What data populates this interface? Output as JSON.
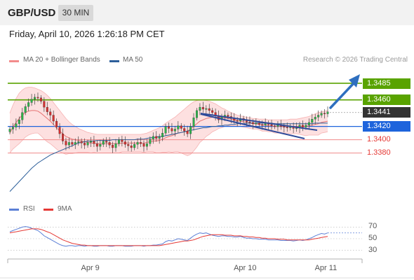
{
  "header": {
    "symbol": "GBP/USD",
    "timeframe": "30 MIN"
  },
  "datetime": "Friday, April 10, 2026 1:26:18 PM CET",
  "legend": {
    "ma20_bb": "MA 20 + Bollinger Bands",
    "ma50": "MA 50",
    "credit": "Research © 2026 Trading Central"
  },
  "rsi_legend": {
    "rsi": "RSI",
    "ma9": "9MA"
  },
  "colors": {
    "resistance": "#59a300",
    "current": "#333333",
    "pivot": "#1e64dc",
    "support": "#e53935",
    "bollinger": "#fcd5d5",
    "ma20": "#e57373",
    "ma50": "#2d5f9a",
    "channel": "#2d4a9a",
    "arrow": "#2e6fbf",
    "bull": "#2db34a",
    "bear": "#d32f2f",
    "rsi": "#5b7fd6",
    "rsi_ma": "#e53935"
  },
  "chart_data": [
    {
      "type": "candlestick",
      "title": "GBP/USD",
      "ylim": [
        1.331,
        1.3505
      ],
      "levels": [
        {
          "label": "1.3485",
          "value": 1.3485,
          "kind": "resistance"
        },
        {
          "label": "1.3460",
          "value": 1.346,
          "kind": "resistance"
        },
        {
          "label": "1.3441",
          "value": 1.3441,
          "kind": "current"
        },
        {
          "label": "1.3420",
          "value": 1.342,
          "kind": "pivot"
        },
        {
          "label": "1.3400",
          "value": 1.34,
          "kind": "support"
        },
        {
          "label": "1.3380",
          "value": 1.338,
          "kind": "support"
        }
      ],
      "x_ticks": [
        "Apr 9",
        "Apr 10",
        "Apr 11"
      ],
      "close": [
        1.3416,
        1.3419,
        1.3424,
        1.343,
        1.3441,
        1.345,
        1.3456,
        1.3461,
        1.3464,
        1.3463,
        1.3458,
        1.3449,
        1.3442,
        1.3437,
        1.3428,
        1.3419,
        1.3409,
        1.3398,
        1.3392,
        1.3396,
        1.3393,
        1.3396,
        1.3397,
        1.3395,
        1.3392,
        1.3396,
        1.3398,
        1.3394,
        1.339,
        1.3393,
        1.3398,
        1.3396,
        1.3392,
        1.3388,
        1.3394,
        1.34,
        1.3397,
        1.3393,
        1.3391,
        1.3388,
        1.3393,
        1.3396,
        1.3394,
        1.339,
        1.3394,
        1.3401,
        1.3405,
        1.3402,
        1.3404,
        1.341,
        1.342,
        1.3417,
        1.3413,
        1.3416,
        1.3421,
        1.3417,
        1.3413,
        1.3409,
        1.342,
        1.3433,
        1.3444,
        1.3449,
        1.3446,
        1.3447,
        1.3444,
        1.3441,
        1.3436,
        1.343,
        1.3434,
        1.3437,
        1.3435,
        1.3432,
        1.3429,
        1.3428,
        1.3432,
        1.3429,
        1.3427,
        1.3426,
        1.3424,
        1.3425,
        1.3423,
        1.3422,
        1.3424,
        1.3423,
        1.3421,
        1.342,
        1.3422,
        1.342,
        1.3419,
        1.3418,
        1.342,
        1.3417,
        1.3418,
        1.3422,
        1.3419,
        1.3422,
        1.3426,
        1.3431,
        1.3434,
        1.3437,
        1.344,
        1.3439,
        1.3442
      ],
      "ma20": [
        1.341,
        1.3419,
        1.3426,
        1.3432,
        1.3437,
        1.3441,
        1.3443,
        1.3444,
        1.3444,
        1.3443,
        1.344,
        1.3436,
        1.3432,
        1.3428,
        1.3423,
        1.3418,
        1.3413,
        1.3409,
        1.3405,
        1.3403,
        1.3401,
        1.34,
        1.3399,
        1.3398,
        1.3397,
        1.3396,
        1.3395,
        1.3395,
        1.3394,
        1.3394,
        1.3394,
        1.3394,
        1.3394,
        1.3394,
        1.3394,
        1.3394,
        1.3395,
        1.3395,
        1.3395,
        1.3395,
        1.3395,
        1.3395,
        1.3395,
        1.3395,
        1.3396,
        1.3397,
        1.3398,
        1.3398,
        1.3399,
        1.3401,
        1.3403,
        1.3405,
        1.3406,
        1.3408,
        1.341,
        1.3411,
        1.3412,
        1.3413,
        1.3416,
        1.342,
        1.3424,
        1.3428,
        1.343,
        1.3432,
        1.3433,
        1.3434,
        1.3434,
        1.3434,
        1.3433,
        1.3433,
        1.3432,
        1.3431,
        1.343,
        1.3429,
        1.3428,
        1.3427,
        1.3426,
        1.3425,
        1.3424,
        1.3424,
        1.3423,
        1.3422,
        1.3422,
        1.3421,
        1.3421,
        1.342,
        1.342,
        1.342,
        1.342,
        1.342,
        1.342,
        1.342,
        1.342,
        1.342,
        1.342,
        1.342,
        1.3421,
        1.3422,
        1.3423,
        1.3424,
        1.3426,
        1.3427,
        1.3428
      ],
      "bb_upper": [
        1.344,
        1.3452,
        1.3462,
        1.347,
        1.3475,
        1.3478,
        1.3479,
        1.3479,
        1.3478,
        1.3476,
        1.3474,
        1.3471,
        1.3467,
        1.3462,
        1.3456,
        1.345,
        1.3444,
        1.3438,
        1.3432,
        1.3427,
        1.3423,
        1.342,
        1.3417,
        1.3415,
        1.3413,
        1.3411,
        1.341,
        1.3409,
        1.3408,
        1.3408,
        1.3408,
        1.3408,
        1.3408,
        1.3408,
        1.3408,
        1.3408,
        1.3408,
        1.3408,
        1.3408,
        1.3408,
        1.3408,
        1.3408,
        1.3408,
        1.3409,
        1.341,
        1.3412,
        1.3414,
        1.3416,
        1.3418,
        1.3421,
        1.3425,
        1.3428,
        1.3431,
        1.3434,
        1.3438,
        1.3442,
        1.3446,
        1.345,
        1.3454,
        1.3457,
        1.3459,
        1.346,
        1.346,
        1.3459,
        1.3458,
        1.3456,
        1.3454,
        1.3451,
        1.3448,
        1.3446,
        1.3443,
        1.3441,
        1.3439,
        1.3437,
        1.3436,
        1.3435,
        1.3434,
        1.3433,
        1.3432,
        1.3432,
        1.3431,
        1.3431,
        1.3431,
        1.343,
        1.343,
        1.343,
        1.343,
        1.343,
        1.343,
        1.343,
        1.3431,
        1.3431,
        1.3431,
        1.3432,
        1.3433,
        1.3434,
        1.3435,
        1.3437,
        1.3439,
        1.3441,
        1.3442,
        1.3443,
        1.3444
      ],
      "bb_lower": [
        1.338,
        1.3386,
        1.339,
        1.3394,
        1.3399,
        1.3404,
        1.3407,
        1.3409,
        1.341,
        1.341,
        1.3406,
        1.3401,
        1.3397,
        1.3394,
        1.339,
        1.3386,
        1.3382,
        1.338,
        1.3378,
        1.3379,
        1.3379,
        1.338,
        1.3381,
        1.3381,
        1.3381,
        1.3381,
        1.338,
        1.3381,
        1.338,
        1.338,
        1.338,
        1.338,
        1.338,
        1.338,
        1.338,
        1.338,
        1.3382,
        1.3382,
        1.3382,
        1.3382,
        1.3382,
        1.3382,
        1.3382,
        1.3381,
        1.3382,
        1.3382,
        1.3382,
        1.338,
        1.338,
        1.3381,
        1.3381,
        1.3382,
        1.3381,
        1.3382,
        1.3382,
        1.338,
        1.3378,
        1.3376,
        1.3378,
        1.3383,
        1.3389,
        1.3396,
        1.34,
        1.3405,
        1.3408,
        1.3412,
        1.3414,
        1.3417,
        1.3418,
        1.342,
        1.3421,
        1.3421,
        1.3421,
        1.3421,
        1.342,
        1.3419,
        1.3418,
        1.3417,
        1.3416,
        1.3416,
        1.3415,
        1.3413,
        1.3413,
        1.3412,
        1.3412,
        1.341,
        1.341,
        1.341,
        1.341,
        1.341,
        1.3409,
        1.3409,
        1.3409,
        1.3408,
        1.3407,
        1.3406,
        1.3407,
        1.3407,
        1.3407,
        1.3407,
        1.341,
        1.3411,
        1.3412
      ],
      "ma50": [
        1.3322,
        1.3327,
        1.3332,
        1.3337,
        1.3342,
        1.3347,
        1.3352,
        1.3357,
        1.3361,
        1.3365,
        1.3368,
        1.3371,
        1.3374,
        1.3377,
        1.3379,
        1.3381,
        1.3383,
        1.3385,
        1.3387,
        1.3389,
        1.3391,
        1.3393,
        1.3395,
        1.3396,
        1.3397,
        1.3398,
        1.3398,
        1.3398,
        1.3399,
        1.3399,
        1.3399,
        1.3399,
        1.3399,
        1.34,
        1.34,
        1.34,
        1.34,
        1.34,
        1.34,
        1.34,
        1.34,
        1.3401,
        1.3401,
        1.3401,
        1.3402,
        1.3403,
        1.3403,
        1.3404,
        1.3405,
        1.3405,
        1.3406,
        1.3407,
        1.3408,
        1.3409,
        1.341,
        1.3411,
        1.3412,
        1.3413,
        1.3414,
        1.3415,
        1.3416,
        1.3417,
        1.3418,
        1.3418,
        1.3419,
        1.342,
        1.342,
        1.3421,
        1.3421,
        1.3422,
        1.3422,
        1.3423,
        1.3423,
        1.3424,
        1.3424,
        1.3424,
        1.3425,
        1.3425,
        1.3425,
        1.3425,
        1.3425,
        1.3425,
        1.3425,
        1.3425,
        1.3425,
        1.3424,
        1.3424,
        1.3424,
        1.3424,
        1.3424,
        1.3424,
        1.3424,
        1.3424,
        1.3424,
        1.3424,
        1.3424,
        1.3424,
        1.3424,
        1.3425,
        1.3425,
        1.3425,
        1.3425,
        1.3425
      ]
    },
    {
      "type": "line",
      "ylim": [
        15,
        85
      ],
      "y_ticks": [
        70,
        50,
        30
      ],
      "series": [
        {
          "name": "RSI",
          "values": [
            62,
            64,
            66,
            68,
            70,
            71,
            70,
            68,
            66,
            64,
            60,
            55,
            52,
            49,
            46,
            43,
            40,
            38,
            37,
            38,
            38,
            37,
            38,
            38,
            37,
            38,
            38,
            37,
            37,
            38,
            38,
            38,
            37,
            37,
            38,
            38,
            38,
            37,
            37,
            37,
            38,
            38,
            38,
            37,
            38,
            38,
            39,
            39,
            40,
            41,
            45,
            47,
            46,
            48,
            50,
            49,
            48,
            47,
            51,
            55,
            58,
            60,
            59,
            60,
            58,
            56,
            55,
            54,
            55,
            55,
            54,
            54,
            53,
            53,
            54,
            52,
            51,
            51,
            50,
            50,
            49,
            49,
            49,
            48,
            48,
            48,
            48,
            47,
            47,
            47,
            47,
            46,
            47,
            48,
            47,
            48,
            50,
            52,
            55,
            57,
            59,
            58,
            60
          ]
        },
        {
          "name": "9MA",
          "values": [
            60,
            61,
            62,
            63,
            64,
            65,
            66,
            67,
            67,
            67,
            66,
            64,
            62,
            60,
            57,
            54,
            51,
            48,
            46,
            44,
            42,
            41,
            40,
            39,
            39,
            38,
            38,
            38,
            38,
            38,
            38,
            38,
            38,
            38,
            38,
            38,
            38,
            38,
            38,
            38,
            38,
            38,
            38,
            38,
            38,
            38,
            38,
            38,
            38,
            39,
            40,
            41,
            42,
            43,
            44,
            45,
            46,
            46,
            47,
            48,
            50,
            52,
            54,
            55,
            56,
            57,
            57,
            57,
            57,
            56,
            56,
            56,
            55,
            55,
            55,
            54,
            54,
            53,
            53,
            52,
            52,
            51,
            51,
            50,
            50,
            50,
            49,
            49,
            49,
            48,
            48,
            48,
            48,
            48,
            48,
            48,
            48,
            49,
            50,
            51,
            52,
            53,
            54
          ]
        }
      ]
    }
  ]
}
